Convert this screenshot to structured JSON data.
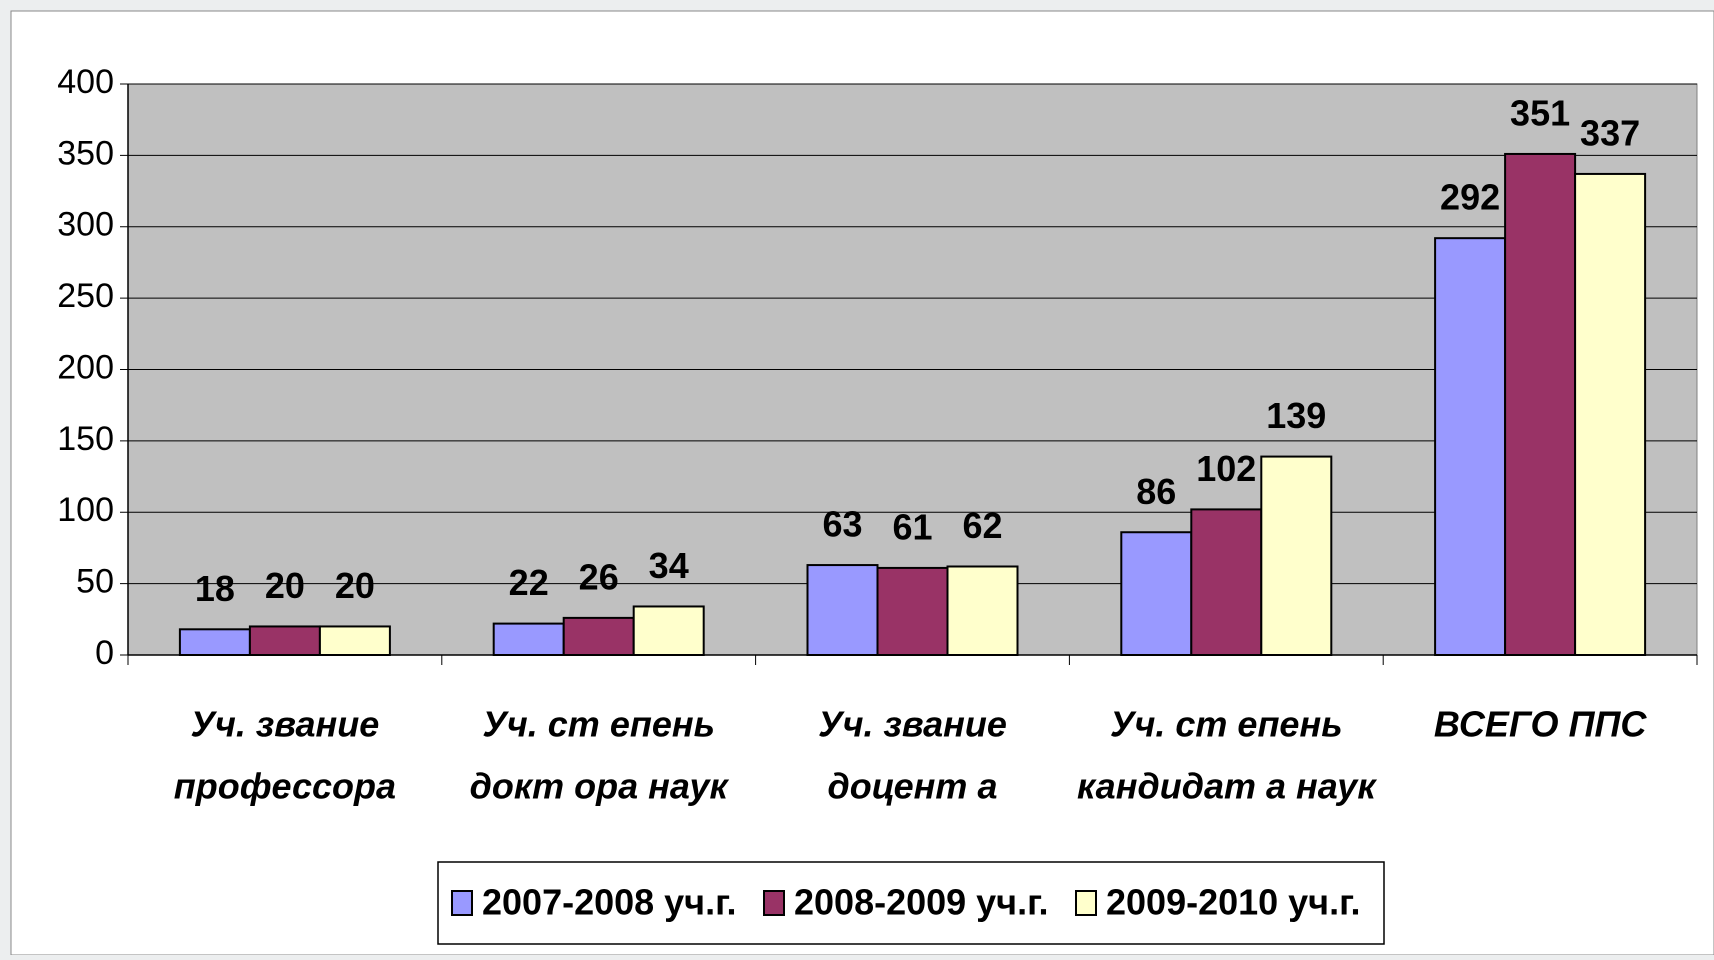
{
  "chart_data": {
    "type": "bar",
    "categories": [
      [
        "Уч. звание",
        "профессора"
      ],
      [
        "Уч. ст епень",
        "докт ора наук"
      ],
      [
        "Уч. звание",
        "доцент а"
      ],
      [
        "Уч. ст епень",
        "кандидат а наук"
      ],
      [
        "ВСЕГО ППС"
      ]
    ],
    "series": [
      {
        "name": "2007-2008 уч.г.",
        "color": "#9999ff",
        "values": [
          18,
          22,
          63,
          86,
          292
        ]
      },
      {
        "name": "2008-2009 уч.г.",
        "color": "#993366",
        "values": [
          20,
          26,
          61,
          102,
          351
        ]
      },
      {
        "name": "2009-2010 уч.г.",
        "color": "#ffffcc",
        "values": [
          20,
          34,
          62,
          139,
          337
        ]
      }
    ],
    "ylim": [
      0,
      400
    ],
    "yticks": [
      0,
      50,
      100,
      150,
      200,
      250,
      300,
      350,
      400
    ],
    "grid": true,
    "legend": "bottom"
  }
}
